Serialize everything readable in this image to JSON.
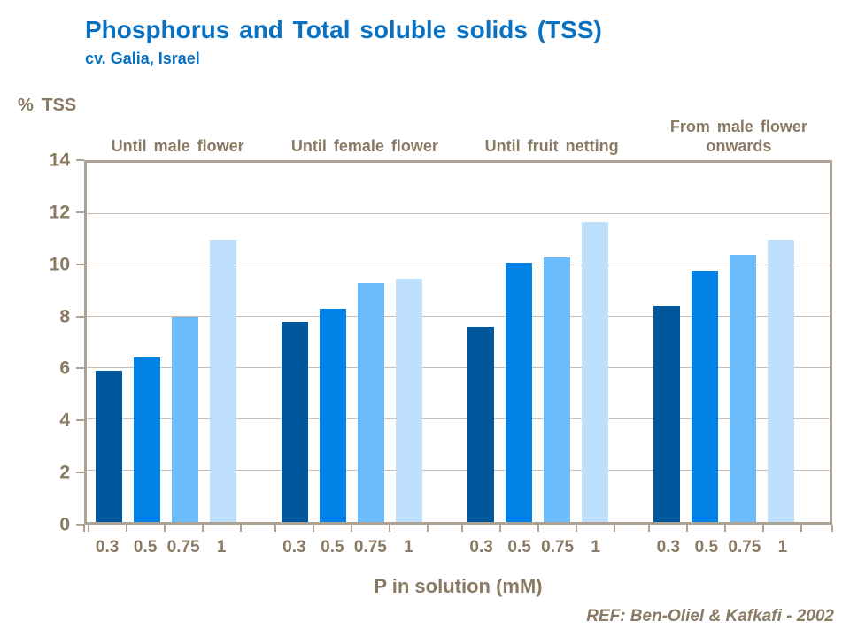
{
  "chart_data": {
    "type": "bar",
    "title": "Phosphorus and Total soluble solids (TSS)",
    "subtitle": "cv. Galia, Israel",
    "ylabel": "% TSS",
    "xlabel": "P in solution (mM)",
    "ylim": [
      0,
      14
    ],
    "ytick_step": 2,
    "grid": true,
    "legend": "none",
    "categories": [
      "0.3",
      "0.5",
      "0.75",
      "1"
    ],
    "groups": [
      {
        "label": "Until male flower",
        "values": [
          5.9,
          6.4,
          8.0,
          11.0
        ]
      },
      {
        "label": "Until female flower",
        "values": [
          7.8,
          8.3,
          9.3,
          9.5
        ]
      },
      {
        "label": "Until fruit netting",
        "values": [
          7.6,
          10.1,
          10.3,
          11.7
        ]
      },
      {
        "label": "From male flower onwards",
        "values": [
          8.4,
          9.8,
          10.4,
          11.0
        ]
      }
    ],
    "bar_colors": [
      "#00579B",
      "#0082E6",
      "#6CBBFA",
      "#BDDFFC"
    ]
  },
  "reference": "REF: Ben-Oliel & Kafkafi - 2002",
  "colors": {
    "title_blue": "#0A70C0",
    "axis_text_brown": "#8A7A64",
    "plot_border_tan": "#AEA295",
    "gridline_tan": "#C8BFB2"
  }
}
